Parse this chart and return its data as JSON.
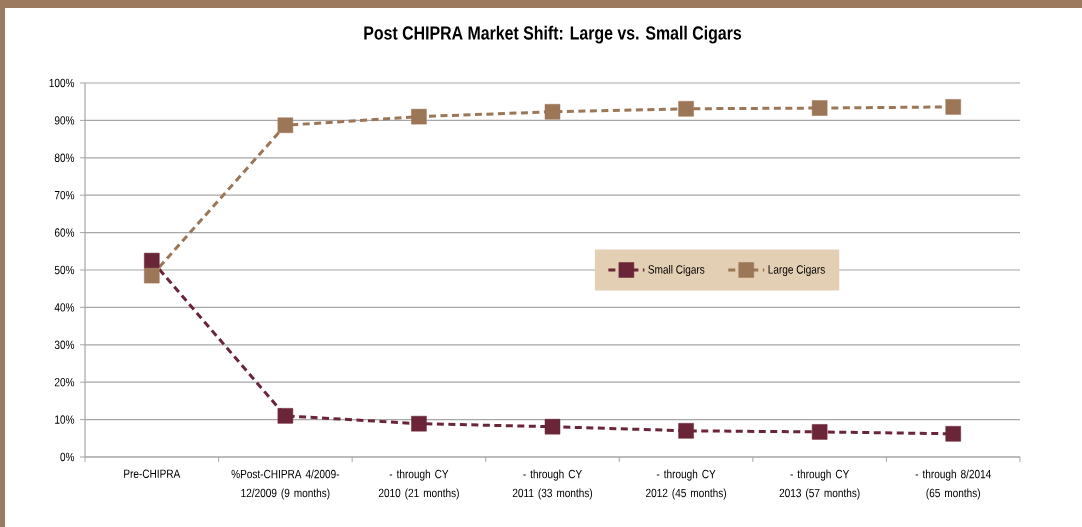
{
  "chart_data": {
    "type": "line",
    "title": "Post CHIPRA Market Shift: Large vs. Small Cigars",
    "categories": [
      "Pre-CHIPRA",
      "%Post-CHIPRA 4/2009-12/2009 (9 months)",
      "- through CY 2010 (21 months)",
      "- through CY 2011 (33 months)",
      "- through CY 2012 (45 months)",
      "- through CY 2013 (57 months)",
      "- through 8/2014 (65 months)"
    ],
    "series": [
      {
        "name": "Small Cigars",
        "color": "#6b2538",
        "values": [
          52.5,
          11,
          8.9,
          8.1,
          7,
          6.7,
          6.2
        ]
      },
      {
        "name": "Large Cigars",
        "color": "#9b7657",
        "values": [
          48.5,
          88.7,
          91,
          92.3,
          93.1,
          93.3,
          93.6
        ]
      }
    ],
    "ylim": [
      0,
      100
    ],
    "yticks": [
      {
        "value": 0,
        "label": "0%"
      },
      {
        "value": 10,
        "label": "10%"
      },
      {
        "value": 20,
        "label": "20%"
      },
      {
        "value": 30,
        "label": "30%"
      },
      {
        "value": 40,
        "label": "40%"
      },
      {
        "value": 50,
        "label": "50%"
      },
      {
        "value": 60,
        "label": "60%"
      },
      {
        "value": 70,
        "label": "70%"
      },
      {
        "value": 80,
        "label": "80%"
      },
      {
        "value": 90,
        "label": "90%"
      },
      {
        "value": 100,
        "label": "100%"
      }
    ],
    "grid": "y",
    "legend": "right",
    "marker": "square",
    "line_style": "dashed"
  }
}
